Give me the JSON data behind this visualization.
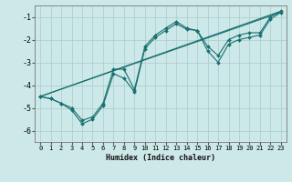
{
  "title": "",
  "xlabel": "Humidex (Indice chaleur)",
  "ylabel": "",
  "bg_color": "#cce8e8",
  "grid_color": "#aacaca",
  "line_color": "#1a7070",
  "xlim": [
    -0.5,
    23.5
  ],
  "ylim": [
    -6.5,
    -0.5
  ],
  "yticks": [
    -6,
    -5,
    -4,
    -3,
    -2,
    -1
  ],
  "xticks": [
    0,
    1,
    2,
    3,
    4,
    5,
    6,
    7,
    8,
    9,
    10,
    11,
    12,
    13,
    14,
    15,
    16,
    17,
    18,
    19,
    20,
    21,
    22,
    23
  ],
  "series": [
    {
      "x": [
        0,
        1,
        2,
        3,
        4,
        5,
        6,
        7,
        8,
        9,
        10,
        11,
        12,
        13,
        14,
        15,
        16,
        17,
        18,
        19,
        20,
        21,
        22,
        23
      ],
      "y": [
        -4.5,
        -4.6,
        -4.8,
        -5.0,
        -5.55,
        -5.4,
        -4.8,
        -3.3,
        -3.3,
        -4.2,
        -2.3,
        -1.8,
        -1.5,
        -1.2,
        -1.5,
        -1.6,
        -2.5,
        -3.0,
        -2.2,
        -2.0,
        -1.9,
        -1.8,
        -1.1,
        -0.8
      ],
      "marker": true
    },
    {
      "x": [
        0,
        1,
        2,
        3,
        4,
        5,
        6,
        7,
        8,
        9,
        10,
        11,
        12,
        13,
        14,
        15,
        16,
        17,
        18,
        19,
        20,
        21,
        22,
        23
      ],
      "y": [
        -4.5,
        -4.6,
        -4.8,
        -5.1,
        -5.7,
        -5.5,
        -4.9,
        -3.5,
        -3.7,
        -4.3,
        -2.4,
        -1.9,
        -1.6,
        -1.3,
        -1.55,
        -1.6,
        -2.3,
        -2.7,
        -2.0,
        -1.8,
        -1.7,
        -1.7,
        -1.0,
        -0.75
      ],
      "marker": true
    },
    {
      "x": [
        0,
        23
      ],
      "y": [
        -4.5,
        -0.8
      ],
      "marker": false
    },
    {
      "x": [
        0,
        23
      ],
      "y": [
        -4.5,
        -0.75
      ],
      "marker": false
    }
  ]
}
